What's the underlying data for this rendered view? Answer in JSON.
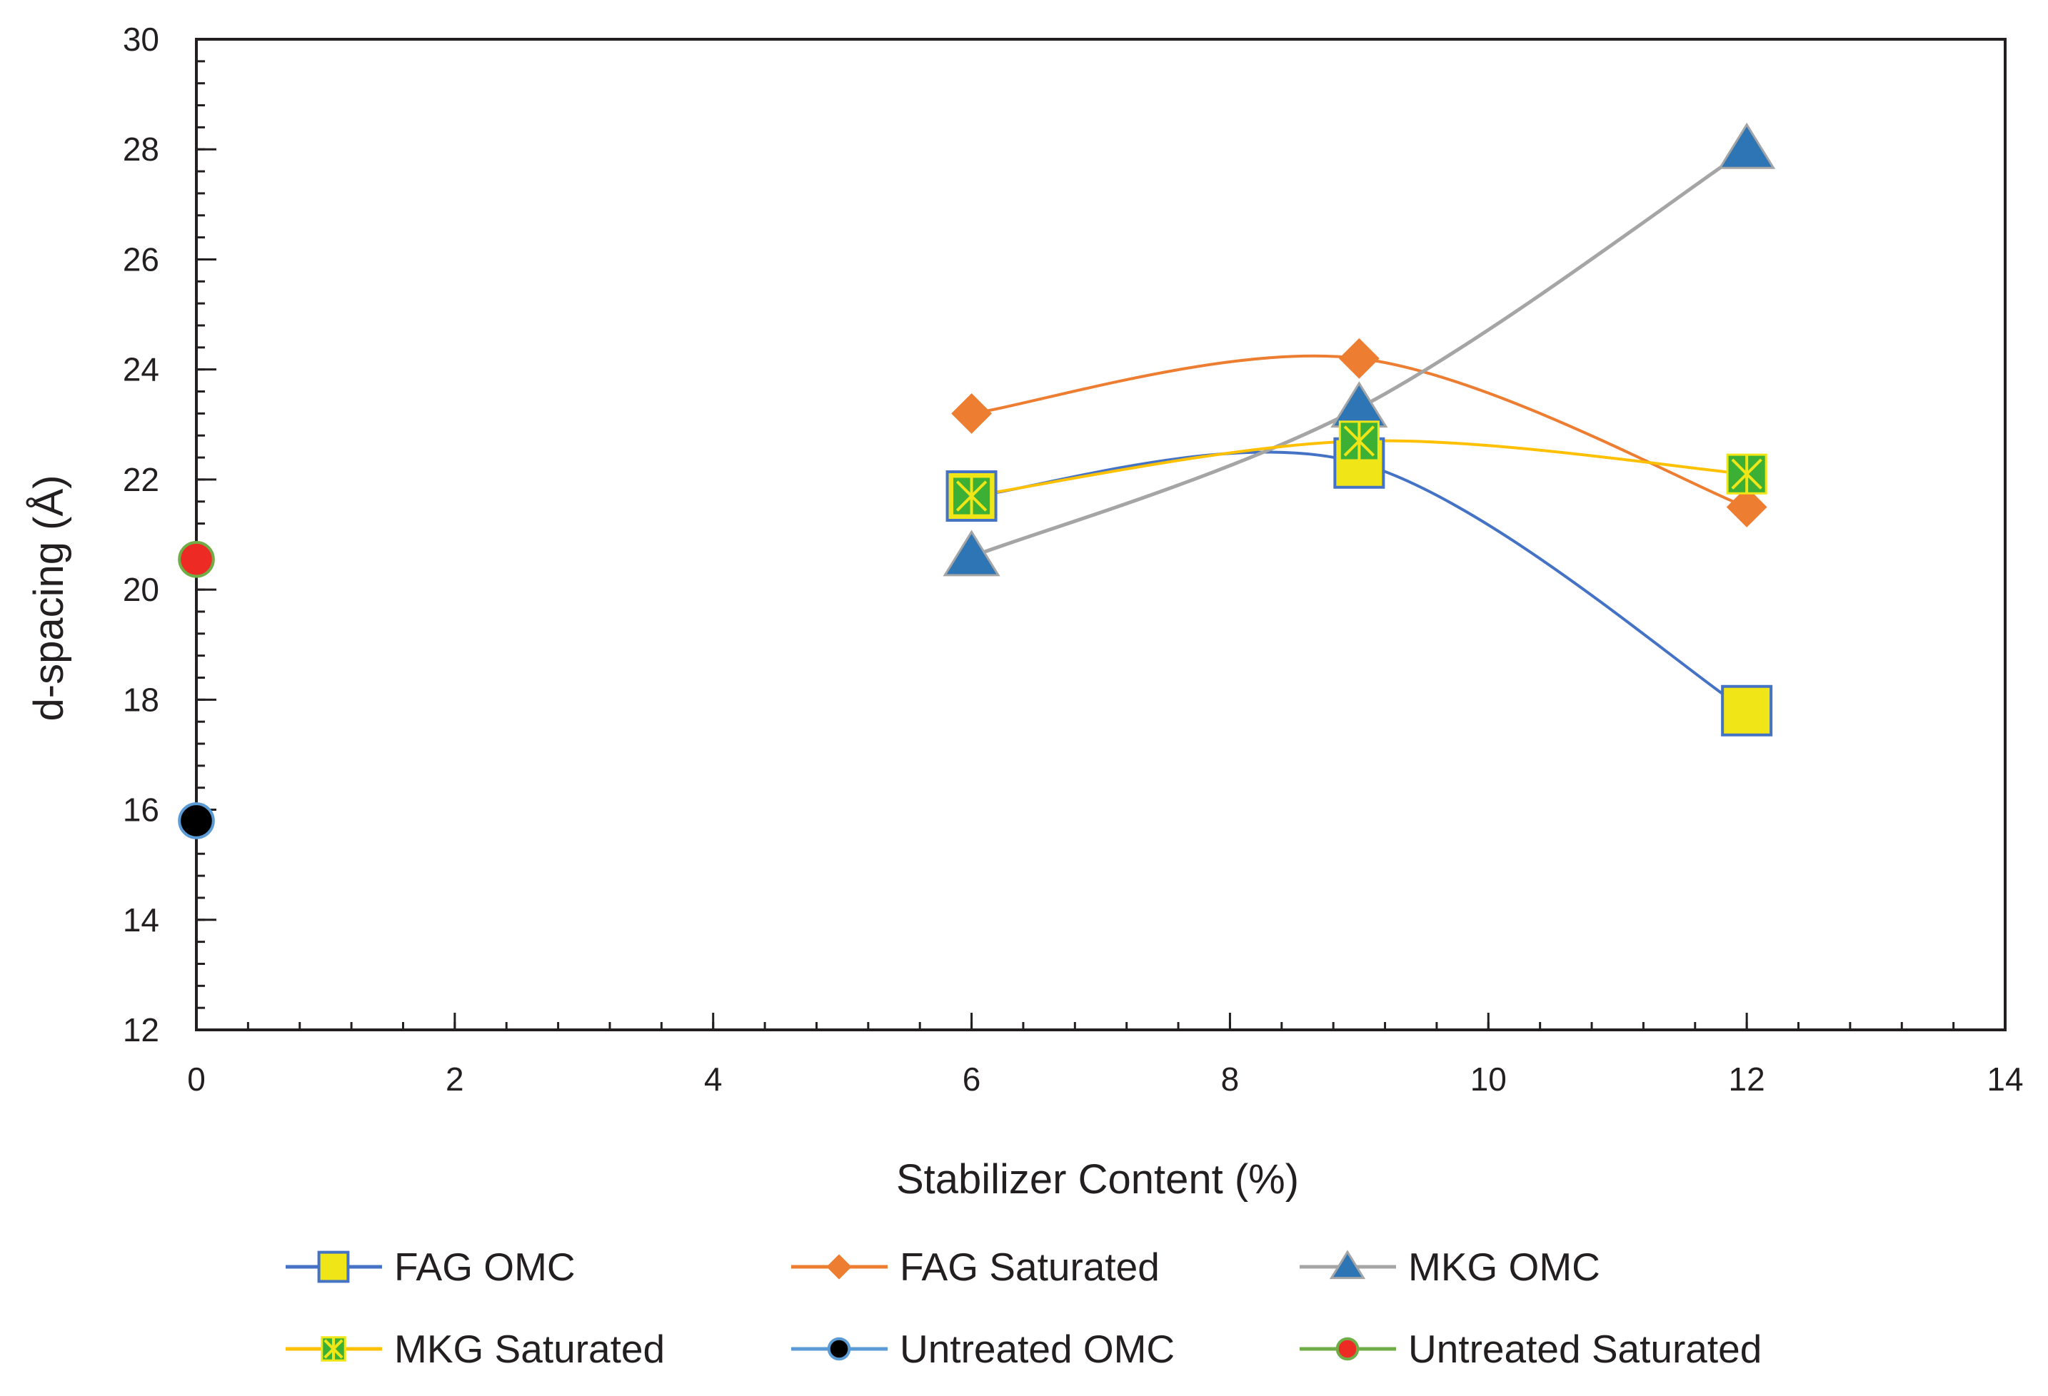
{
  "chart_data": {
    "type": "scatter",
    "xlabel": "Stabilizer Content (%)",
    "ylabel": "d-spacing (Å)",
    "xlim": [
      0,
      14
    ],
    "ylim": [
      12,
      30
    ],
    "xticks": [
      0,
      2,
      4,
      6,
      8,
      10,
      12,
      14
    ],
    "yticks": [
      12,
      14,
      16,
      18,
      20,
      22,
      24,
      26,
      28,
      30
    ],
    "x_tick_labels": [
      "0",
      "2",
      "4",
      "6",
      "8",
      "10",
      "12",
      "14"
    ],
    "y_tick_labels": [
      "12",
      "14",
      "16",
      "18",
      "20",
      "22",
      "24",
      "26",
      "28",
      "30"
    ],
    "grid": false,
    "legend_position": "bottom",
    "series": [
      {
        "name": "FAG OMC",
        "x": [
          6,
          9,
          12
        ],
        "y": [
          21.7,
          22.3,
          17.8
        ],
        "line_color": "#4472c4",
        "marker": "square",
        "marker_fill": "#f0e516",
        "marker_edge": "#4472c4",
        "smooth": true
      },
      {
        "name": "FAG Saturated",
        "x": [
          6,
          9,
          12
        ],
        "y": [
          23.2,
          24.2,
          21.5
        ],
        "line_color": "#ed7d31",
        "marker": "diamond",
        "marker_fill": "#ed7d31",
        "marker_edge": "#ed7d31",
        "smooth": true
      },
      {
        "name": "MKG OMC",
        "x": [
          6,
          9,
          12
        ],
        "y": [
          20.6,
          23.3,
          28.0
        ],
        "line_color": "#a5a5a5",
        "marker": "triangle",
        "marker_fill": "#2e75b6",
        "marker_edge": "#a5a5a5",
        "smooth": true
      },
      {
        "name": "MKG Saturated",
        "x": [
          6,
          9,
          12
        ],
        "y": [
          21.7,
          22.7,
          22.1
        ],
        "line_color": "#ffc000",
        "marker": "x-square",
        "marker_fill": "#3cb034",
        "marker_edge": "#f0e516",
        "smooth": true
      },
      {
        "name": "Untreated OMC",
        "x": [
          0
        ],
        "y": [
          15.8
        ],
        "line_color": "#5b9bd5",
        "marker": "circle",
        "marker_fill": "#000000",
        "marker_edge": "#5b9bd5",
        "smooth": false
      },
      {
        "name": "Untreated Saturated",
        "x": [
          0
        ],
        "y": [
          20.55
        ],
        "line_color": "#70ad47",
        "marker": "circle",
        "marker_fill": "#ee2a24",
        "marker_edge": "#70ad47",
        "smooth": false
      }
    ]
  }
}
